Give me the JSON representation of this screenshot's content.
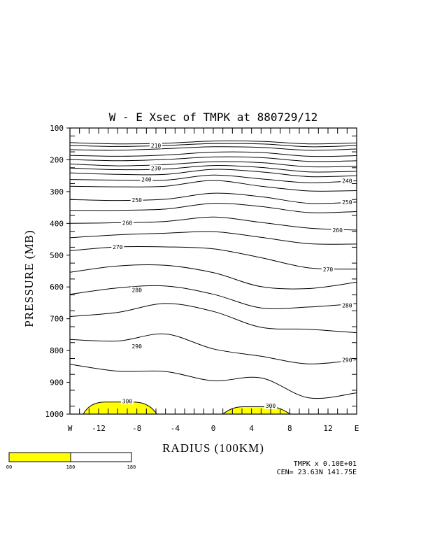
{
  "chart_data": {
    "type": "contour",
    "title": "W - E Xsec of TMPK at 880729/12",
    "xlabel": "RADIUS (100KM)",
    "ylabel": "PRESSURE (MB)",
    "xlim": [
      -15,
      15
    ],
    "ylim": [
      1000,
      100
    ],
    "y_scale": "linear-inverted",
    "y_ticks": [
      100,
      200,
      300,
      400,
      500,
      600,
      700,
      800,
      900,
      1000
    ],
    "y_tick_labels": [
      "100",
      "200",
      "300",
      "400",
      "500",
      "600",
      "700",
      "800",
      "900",
      "1000"
    ],
    "x_ticks": [
      -15,
      -12,
      -8,
      -4,
      0,
      4,
      8,
      12,
      15
    ],
    "x_tick_labels": [
      "W",
      "-12",
      "-8",
      "-4",
      "0",
      "4",
      "8",
      "12",
      "E"
    ],
    "fill_color": "#ffff00",
    "fill_threshold_label": "300",
    "contour_labels": [
      {
        "text": "210",
        "x": -6,
        "p": 155
      },
      {
        "text": "230",
        "x": -6,
        "p": 226
      },
      {
        "text": "240",
        "x": -7,
        "p": 262
      },
      {
        "text": "240",
        "x": 14,
        "p": 266
      },
      {
        "text": "250",
        "x": -8,
        "p": 327
      },
      {
        "text": "250",
        "x": 14,
        "p": 333
      },
      {
        "text": "260",
        "x": -9,
        "p": 398
      },
      {
        "text": "260",
        "x": 13,
        "p": 421
      },
      {
        "text": "270",
        "x": -10,
        "p": 474
      },
      {
        "text": "270",
        "x": 12,
        "p": 544
      },
      {
        "text": "280",
        "x": -8,
        "p": 609
      },
      {
        "text": "280",
        "x": 14,
        "p": 658
      },
      {
        "text": "290",
        "x": -8,
        "p": 787
      },
      {
        "text": "290",
        "x": 14,
        "p": 829
      },
      {
        "text": "300",
        "x": -9,
        "p": 959
      },
      {
        "text": "300",
        "x": 6,
        "p": 974
      }
    ],
    "contours": [
      {
        "p": [
          146,
          150,
          148,
          141,
          142,
          150,
          147
        ]
      },
      {
        "p": [
          155,
          158,
          155,
          149,
          150,
          159,
          155
        ]
      },
      {
        "p": [
          168,
          170,
          165,
          159,
          161,
          170,
          166
        ]
      },
      {
        "p": [
          186,
          189,
          185,
          176,
          177,
          189,
          187
        ]
      },
      {
        "p": [
          199,
          203,
          199,
          191,
          193,
          205,
          203
        ]
      },
      {
        "p": [
          213,
          219,
          215,
          206,
          209,
          222,
          220
        ]
      },
      {
        "p": [
          226,
          231,
          229,
          218,
          224,
          238,
          236
        ]
      },
      {
        "p": [
          241,
          246,
          246,
          230,
          238,
          253,
          250
        ]
      },
      {
        "p": [
          262,
          264,
          264,
          248,
          260,
          272,
          266
        ]
      },
      {
        "p": [
          283,
          285,
          283,
          265,
          283,
          298,
          297
        ]
      },
      {
        "p": [
          325,
          328,
          324,
          305,
          316,
          337,
          333
        ]
      },
      {
        "p": [
          359,
          359,
          355,
          337,
          347,
          366,
          363
        ]
      },
      {
        "p": [
          400,
          398,
          394,
          380,
          397,
          415,
          421
        ]
      },
      {
        "p": [
          445,
          436,
          431,
          426,
          444,
          464,
          465
        ]
      },
      {
        "p": [
          486,
          474,
          474,
          480,
          508,
          540,
          544
        ]
      },
      {
        "p": [
          554,
          534,
          532,
          555,
          599,
          605,
          585
        ]
      },
      {
        "p": [
          623,
          603,
          597,
          623,
          666,
          663,
          652
        ]
      },
      {
        "p": [
          693,
          680,
          652,
          677,
          727,
          733,
          744
        ]
      },
      {
        "p": [
          765,
          770,
          748,
          795,
          818,
          842,
          829
        ]
      },
      {
        "p": [
          843,
          865,
          866,
          895,
          886,
          949,
          933
        ]
      }
    ],
    "filled_regions": [
      {
        "x_start": -13.6,
        "x_end": -5.9,
        "p_top": 962
      },
      {
        "x_start": 1.0,
        "x_end": 8.1,
        "p_top": 977
      }
    ],
    "colorbar": {
      "labels": [
        "00",
        "180",
        "180"
      ],
      "colors": [
        "#ffff00",
        "#ffffff"
      ]
    },
    "footer_lines": [
      "TMPK x  0.10E+01",
      "CEN= 23.63N  141.75E"
    ]
  }
}
